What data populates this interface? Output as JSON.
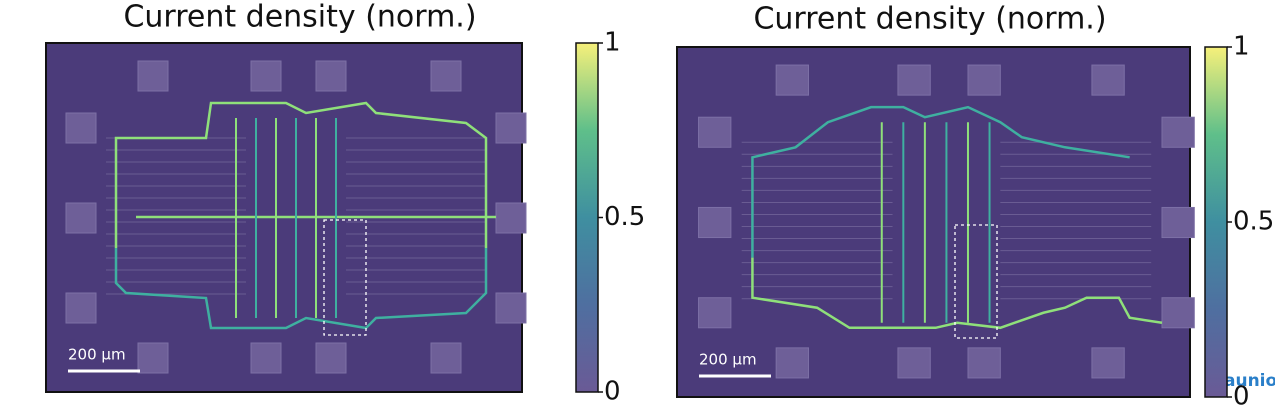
{
  "panels": [
    {
      "title": "Current density (norm.)",
      "scale_bar": "200 µm",
      "colorbar": {
        "lim": [
          0,
          1
        ],
        "ticks": [
          0,
          0.5,
          1
        ]
      }
    },
    {
      "title": "Current density (norm.)",
      "scale_bar": "200 µm",
      "colorbar": {
        "lim": [
          0,
          1
        ],
        "ticks": [
          0,
          0.5,
          1
        ]
      }
    }
  ],
  "watermark": "aunion"
}
